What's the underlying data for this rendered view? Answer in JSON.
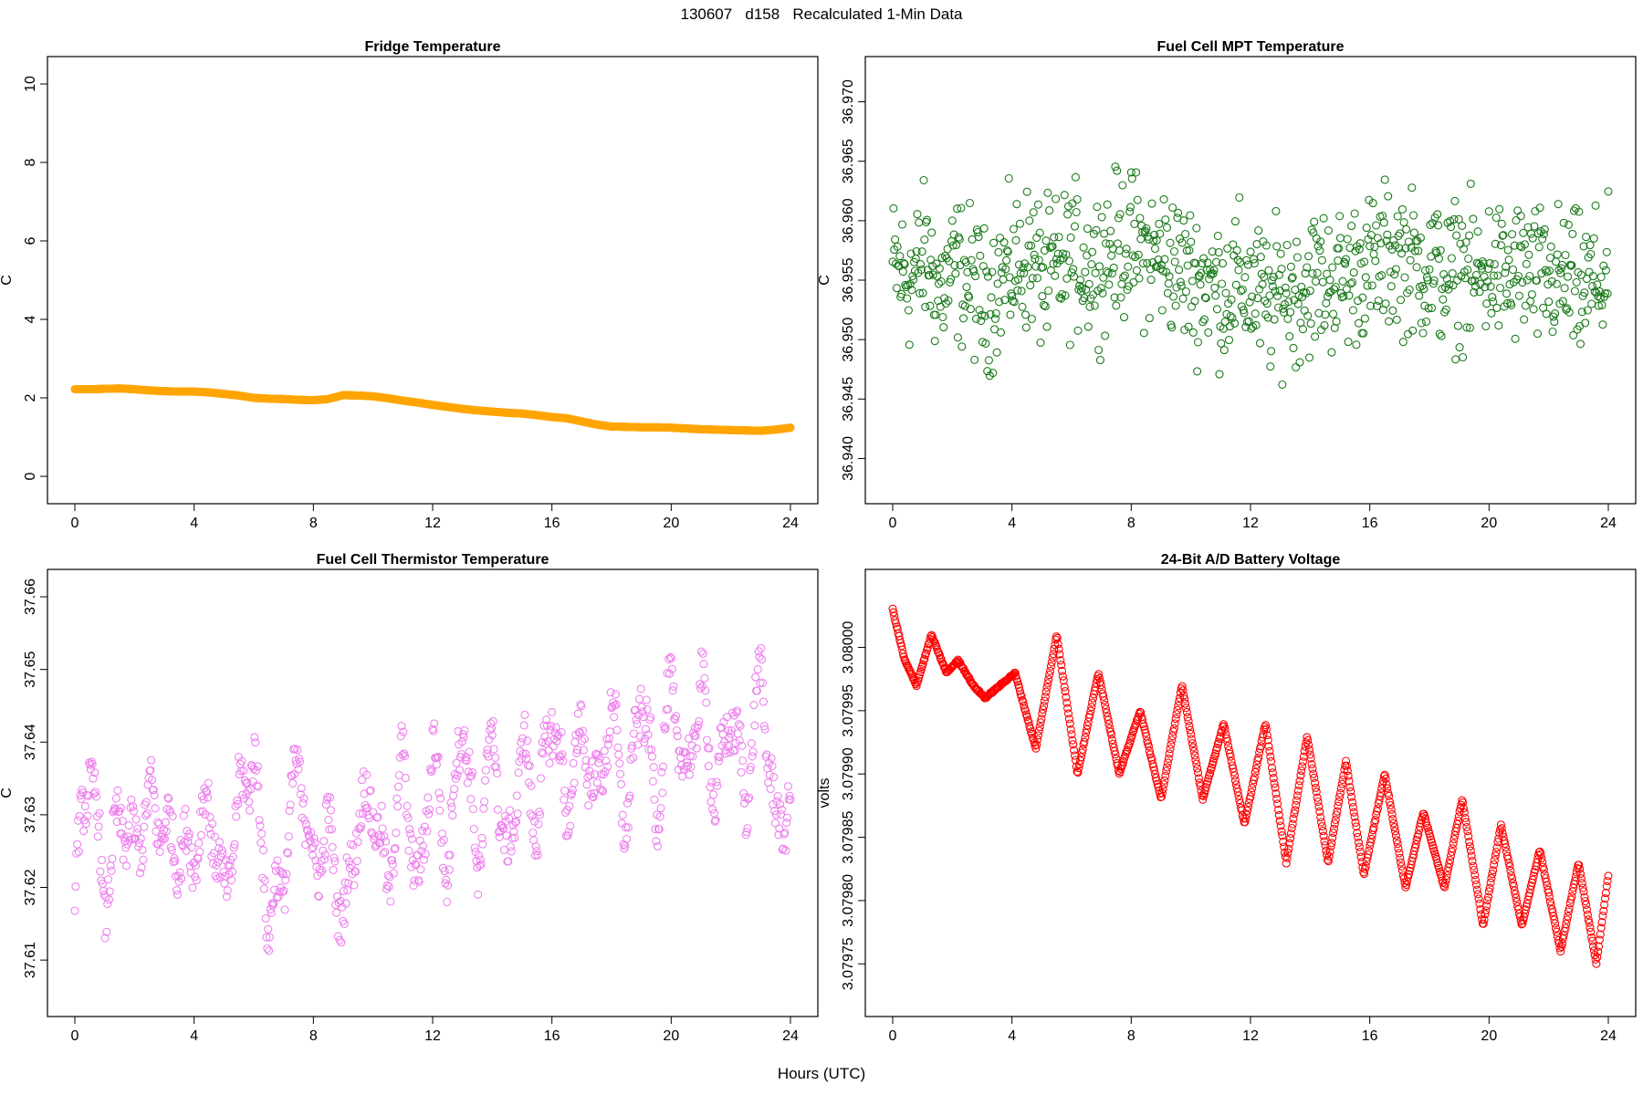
{
  "figure": {
    "header": "130607   d158   Recalculated 1-Min Data",
    "xlabel": "Hours (UTC)"
  },
  "chart_data": [
    {
      "type": "scatter",
      "title": "Fridge Temperature",
      "xlabel": "",
      "ylabel": "C",
      "xlim": [
        0,
        24
      ],
      "ylim": [
        0,
        10
      ],
      "x_ticks": [
        "0",
        "4",
        "8",
        "12",
        "16",
        "20",
        "24"
      ],
      "y_ticks": [
        "0",
        "2",
        "4",
        "6",
        "8",
        "10"
      ],
      "color": "#ffa500",
      "marker": "filled-circle",
      "grid": false,
      "x": [
        0,
        0.5,
        1,
        1.5,
        2,
        2.5,
        3,
        3.5,
        4,
        4.5,
        5,
        5.5,
        6,
        6.5,
        7,
        7.5,
        8,
        8.5,
        9,
        9.5,
        10,
        10.5,
        11,
        11.5,
        12,
        12.5,
        13,
        13.5,
        14,
        14.5,
        15,
        15.5,
        16,
        16.5,
        17,
        17.5,
        18,
        18.5,
        19,
        19.5,
        20,
        20.5,
        21,
        21.5,
        22,
        22.5,
        23,
        23.5,
        24
      ],
      "y": [
        2.22,
        2.22,
        2.23,
        2.24,
        2.22,
        2.19,
        2.17,
        2.16,
        2.16,
        2.14,
        2.1,
        2.06,
        2.0,
        1.98,
        1.97,
        1.95,
        1.94,
        1.97,
        2.07,
        2.06,
        2.04,
        1.99,
        1.93,
        1.88,
        1.82,
        1.77,
        1.72,
        1.68,
        1.65,
        1.62,
        1.6,
        1.56,
        1.51,
        1.48,
        1.4,
        1.32,
        1.27,
        1.26,
        1.25,
        1.25,
        1.24,
        1.22,
        1.2,
        1.19,
        1.18,
        1.17,
        1.16,
        1.19,
        1.24
      ]
    },
    {
      "type": "scatter",
      "title": "Fuel Cell MPT Temperature",
      "xlabel": "",
      "ylabel": "C",
      "xlim": [
        0,
        24
      ],
      "ylim": [
        36.9385,
        36.9715
      ],
      "x_ticks": [
        "0",
        "4",
        "8",
        "12",
        "16",
        "20",
        "24"
      ],
      "y_ticks": [
        "36.940",
        "36.945",
        "36.950",
        "36.955",
        "36.960",
        "36.965",
        "36.970"
      ],
      "color": "#1a7a1a",
      "marker": "open-circle",
      "grid": false,
      "description_of_distribution": "noisy scatter centred near 36.956 with spread about ±0.006",
      "x": [
        0.1,
        0.6,
        1.1,
        1.6,
        2.1,
        2.6,
        3.1,
        3.6,
        4.1,
        4.6,
        5.1,
        5.6,
        6.1,
        6.6,
        7.1,
        7.6,
        8.1,
        8.6,
        9.1,
        9.6,
        10.1,
        10.6,
        11.1,
        11.6,
        12.1,
        12.6,
        13.1,
        13.6,
        14.1,
        14.6,
        15.1,
        15.6,
        16.1,
        16.6,
        17.1,
        17.6,
        18.1,
        18.6,
        19.1,
        19.6,
        20.1,
        20.6,
        21.1,
        21.6,
        22.1,
        22.6,
        23.1,
        23.6
      ],
      "y": [
        36.956,
        36.955,
        36.957,
        36.954,
        36.956,
        36.955,
        36.953,
        36.955,
        36.956,
        36.957,
        36.955,
        36.956,
        36.957,
        36.956,
        36.957,
        36.958,
        36.958,
        36.957,
        36.957,
        36.956,
        36.955,
        36.955,
        36.954,
        36.955,
        36.954,
        36.953,
        36.954,
        36.954,
        36.955,
        36.955,
        36.955,
        36.956,
        36.956,
        36.957,
        36.957,
        36.956,
        36.956,
        36.955,
        36.956,
        36.955,
        36.956,
        36.955,
        36.956,
        36.955,
        36.955,
        36.955,
        36.954,
        36.955
      ]
    },
    {
      "type": "scatter",
      "title": "Fuel Cell Thermistor Temperature",
      "xlabel": "",
      "ylabel": "C",
      "xlim": [
        0,
        24
      ],
      "ylim": [
        37.606,
        37.66
      ],
      "x_ticks": [
        "0",
        "4",
        "8",
        "12",
        "16",
        "20",
        "24"
      ],
      "y_ticks": [
        "37.61",
        "37.62",
        "37.63",
        "37.64",
        "37.65",
        "37.66"
      ],
      "color": "#ee82ee",
      "marker": "open-circle",
      "grid": false,
      "description_of_distribution": "oscillating series, ~0.6 h period, rising from ~37.625 to ~37.64",
      "x": [
        0,
        0.5,
        1,
        1.5,
        2,
        2.5,
        3,
        3.5,
        4,
        4.5,
        5,
        5.5,
        6,
        6.5,
        7,
        7.5,
        8,
        8.5,
        9,
        9.5,
        10,
        10.5,
        11,
        11.5,
        12,
        12.5,
        13,
        13.5,
        14,
        14.5,
        15,
        15.5,
        16,
        16.5,
        17,
        17.5,
        18,
        18.5,
        19,
        19.5,
        20,
        20.5,
        21,
        21.5,
        22,
        22.5,
        23,
        23.5,
        24
      ],
      "y": [
        37.62,
        37.638,
        37.618,
        37.63,
        37.625,
        37.632,
        37.628,
        37.625,
        37.625,
        37.632,
        37.618,
        37.632,
        37.638,
        37.615,
        37.622,
        37.638,
        37.622,
        37.628,
        37.615,
        37.63,
        37.632,
        37.62,
        37.638,
        37.618,
        37.64,
        37.622,
        37.645,
        37.622,
        37.642,
        37.622,
        37.64,
        37.628,
        37.645,
        37.63,
        37.642,
        37.632,
        37.645,
        37.628,
        37.648,
        37.63,
        37.648,
        37.634,
        37.648,
        37.632,
        37.645,
        37.632,
        37.65,
        37.628,
        37.632
      ]
    },
    {
      "type": "scatter",
      "title": "24-Bit A/D Battery Voltage",
      "xlabel": "",
      "ylabel": "volts",
      "xlim": [
        0,
        24
      ],
      "ylim": [
        3.07973,
        3.08004
      ],
      "x_ticks": [
        "0",
        "4",
        "8",
        "12",
        "16",
        "20",
        "24"
      ],
      "y_ticks": [
        "3.07975",
        "3.07980",
        "3.07985",
        "3.07990",
        "3.07995",
        "3.08000"
      ],
      "color": "#ff0000",
      "marker": "open-circle",
      "grid": false,
      "description_of_distribution": "dense sinusoid (~1.4 h period) on a falling trend",
      "x": [
        0,
        0.4,
        0.8,
        1.3,
        1.8,
        2.2,
        2.7,
        3.1,
        3.6,
        4.1,
        4.8,
        5.5,
        6.2,
        6.9,
        7.6,
        8.3,
        9.0,
        9.7,
        10.4,
        11.1,
        11.8,
        12.5,
        13.2,
        13.9,
        14.6,
        15.2,
        15.8,
        16.5,
        17.2,
        17.8,
        18.5,
        19.1,
        19.8,
        20.4,
        21.1,
        21.7,
        22.4,
        23.0,
        23.6,
        24
      ],
      "y": [
        3.08003,
        3.07999,
        3.07997,
        3.08001,
        3.07998,
        3.07999,
        3.07997,
        3.07996,
        3.07997,
        3.07998,
        3.07992,
        3.08001,
        3.0799,
        3.07998,
        3.0799,
        3.07995,
        3.07988,
        3.07997,
        3.07988,
        3.07994,
        3.07986,
        3.07994,
        3.07983,
        3.07993,
        3.07983,
        3.07991,
        3.07982,
        3.0799,
        3.07981,
        3.07987,
        3.07981,
        3.07988,
        3.07978,
        3.07986,
        3.07978,
        3.07984,
        3.07976,
        3.07983,
        3.07975,
        3.07982
      ]
    }
  ]
}
